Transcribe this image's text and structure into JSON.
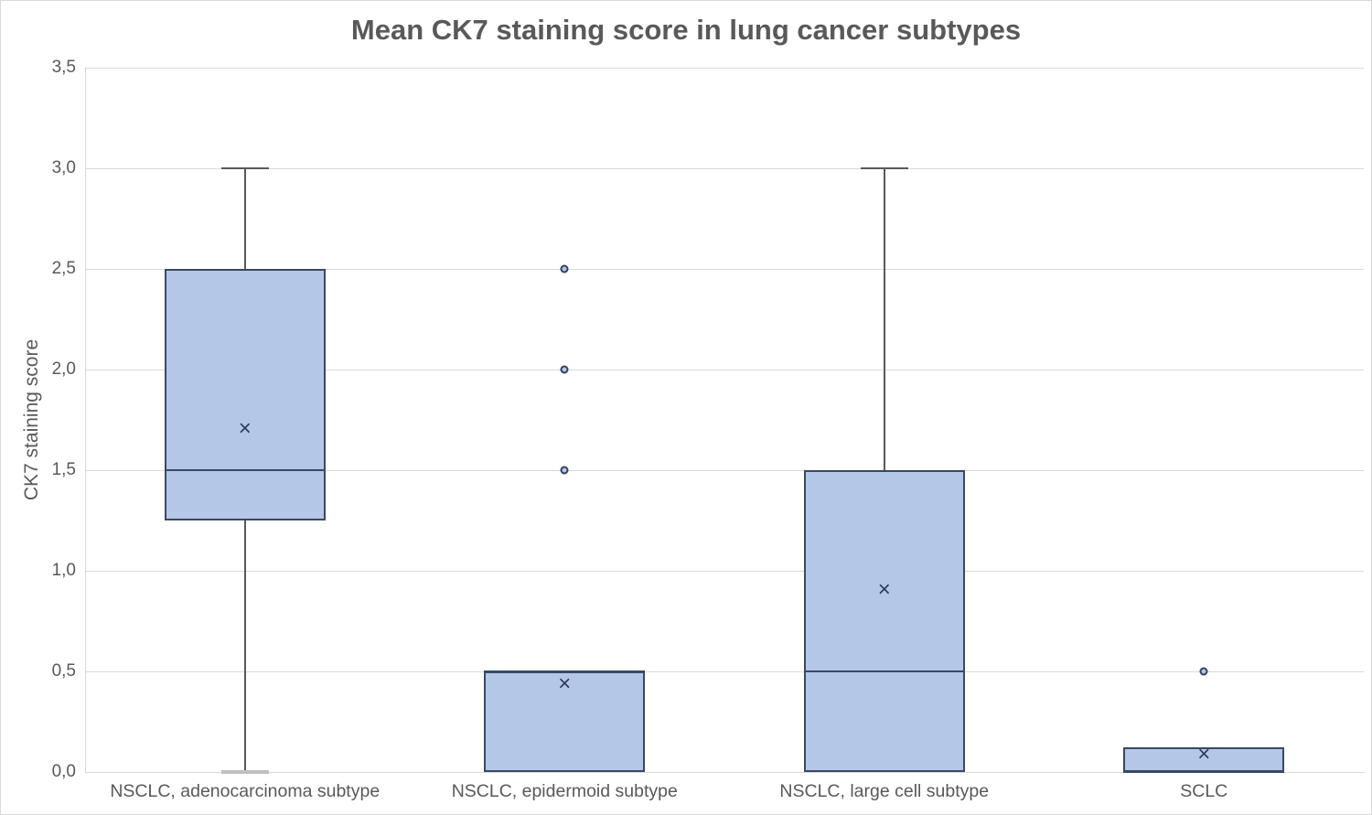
{
  "title": "Mean CK7 staining score in lung cancer subtypes",
  "colors": {
    "box_fill": "#b4c7e7",
    "box_border": "#3a4861",
    "whisker": "#595959",
    "gridline": "#d9d9d9",
    "text": "#595959"
  },
  "chart_data": {
    "type": "boxplot",
    "title": "Mean CK7 staining score in lung cancer subtypes",
    "xlabel": "",
    "ylabel": "CK7 staining score",
    "ylim": [
      0,
      3.5
    ],
    "grid": true,
    "legend": false,
    "ytick_labels": [
      "0,0",
      "0,5",
      "1,0",
      "1,5",
      "2,0",
      "2,5",
      "3,0",
      "3,5"
    ],
    "ytick_values": [
      0,
      0.5,
      1,
      1.5,
      2,
      2.5,
      3,
      3.5
    ],
    "categories": [
      "NSCLC, adenocarcinoma subtype",
      "NSCLC, epidermoid subtype",
      "NSCLC, large cell subtype",
      "SCLC"
    ],
    "series": [
      {
        "name": "NSCLC, adenocarcinoma subtype",
        "min": 0,
        "q1": 1.25,
        "median": 1.5,
        "q3": 2.5,
        "max": 3.0,
        "mean": 1.7,
        "outliers": []
      },
      {
        "name": "NSCLC, epidermoid subtype",
        "min": 0,
        "q1": 0,
        "median": 0.5,
        "q3": 0.5,
        "max": 0.5,
        "mean": 0.43,
        "outliers": [
          1.5,
          2.0,
          2.5
        ]
      },
      {
        "name": "NSCLC, large cell subtype",
        "min": 0,
        "q1": 0,
        "median": 0.5,
        "q3": 1.5,
        "max": 3.0,
        "mean": 0.9,
        "outliers": []
      },
      {
        "name": "SCLC",
        "min": 0,
        "q1": 0,
        "median": 0,
        "q3": 0.125,
        "max": 0.125,
        "mean": 0.08,
        "outliers": [
          0.5
        ]
      }
    ]
  }
}
